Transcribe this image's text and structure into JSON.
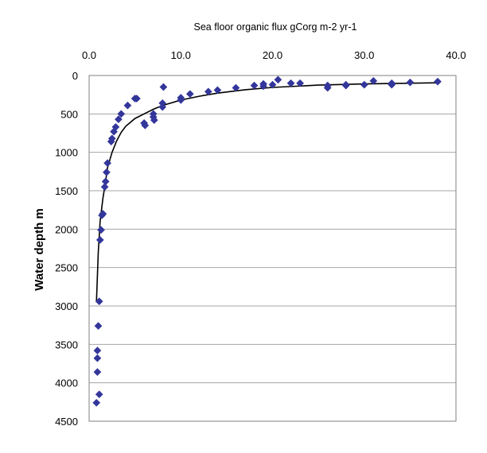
{
  "chart_data": {
    "type": "scatter",
    "title": "Sea floor organic flux gCorg m-2 yr-1",
    "xlabel": "Sea floor organic flux gCorg m-2 yr-1",
    "ylabel": "Water depth m",
    "xlim": [
      0,
      40
    ],
    "ylim": [
      4500,
      0
    ],
    "x_axis_position": "top",
    "y_axis_inverted": true,
    "grid": "horizontal",
    "x_ticks": [
      "0.0",
      "10.0",
      "20.0",
      "30.0",
      "40.0"
    ],
    "y_ticks": [
      "0",
      "500",
      "1000",
      "1500",
      "2000",
      "2500",
      "3000",
      "3500",
      "4000",
      "4500"
    ],
    "marker": "diamond",
    "colors": {
      "marker": "#33369a",
      "line": "#000000",
      "grid": "#a6a6a6",
      "axis": "#808080"
    },
    "series": [
      {
        "type": "scatter",
        "points": [
          [
            0.8,
            4260
          ],
          [
            1.1,
            4150
          ],
          [
            0.9,
            3860
          ],
          [
            0.9,
            3680
          ],
          [
            0.9,
            3580
          ],
          [
            1.0,
            3260
          ],
          [
            1.1,
            2940
          ],
          [
            1.2,
            2140
          ],
          [
            1.3,
            2010
          ],
          [
            1.4,
            1820
          ],
          [
            1.5,
            1800
          ],
          [
            1.7,
            1450
          ],
          [
            1.8,
            1380
          ],
          [
            1.9,
            1260
          ],
          [
            2.0,
            1140
          ],
          [
            2.4,
            860
          ],
          [
            2.5,
            820
          ],
          [
            2.7,
            730
          ],
          [
            2.9,
            670
          ],
          [
            3.2,
            570
          ],
          [
            3.5,
            500
          ],
          [
            4.2,
            390
          ],
          [
            5.0,
            300
          ],
          [
            5.2,
            300
          ],
          [
            6.0,
            620
          ],
          [
            6.1,
            650
          ],
          [
            7.0,
            500
          ],
          [
            7.0,
            540
          ],
          [
            7.1,
            580
          ],
          [
            8.0,
            360
          ],
          [
            8.0,
            410
          ],
          [
            8.1,
            150
          ],
          [
            10.0,
            290
          ],
          [
            10.0,
            320
          ],
          [
            11.0,
            240
          ],
          [
            13.0,
            210
          ],
          [
            14.0,
            190
          ],
          [
            16.0,
            160
          ],
          [
            18.0,
            130
          ],
          [
            19.0,
            140
          ],
          [
            19.0,
            110
          ],
          [
            20.0,
            120
          ],
          [
            20.6,
            55
          ],
          [
            22.0,
            100
          ],
          [
            23.0,
            100
          ],
          [
            26.0,
            160
          ],
          [
            26.0,
            130
          ],
          [
            28.0,
            130
          ],
          [
            28.0,
            120
          ],
          [
            30.0,
            120
          ],
          [
            31.0,
            70
          ],
          [
            33.0,
            100
          ],
          [
            33.0,
            120
          ],
          [
            35.0,
            90
          ],
          [
            38.0,
            80
          ]
        ]
      },
      {
        "type": "line",
        "points": [
          [
            0.8,
            2950
          ],
          [
            1.0,
            2300
          ],
          [
            1.2,
            1900
          ],
          [
            1.5,
            1600
          ],
          [
            1.8,
            1380
          ],
          [
            2.0,
            1200
          ],
          [
            2.5,
            1000
          ],
          [
            3.0,
            850
          ],
          [
            3.5,
            740
          ],
          [
            4.0,
            660
          ],
          [
            5.0,
            560
          ],
          [
            6.0,
            500
          ],
          [
            7.0,
            440
          ],
          [
            8.0,
            390
          ],
          [
            10.0,
            320
          ],
          [
            12.0,
            270
          ],
          [
            14.0,
            230
          ],
          [
            17.0,
            185
          ],
          [
            20.0,
            155
          ],
          [
            25.0,
            125
          ],
          [
            30.0,
            110
          ],
          [
            35.0,
            100
          ],
          [
            38.0,
            95
          ]
        ]
      }
    ]
  }
}
